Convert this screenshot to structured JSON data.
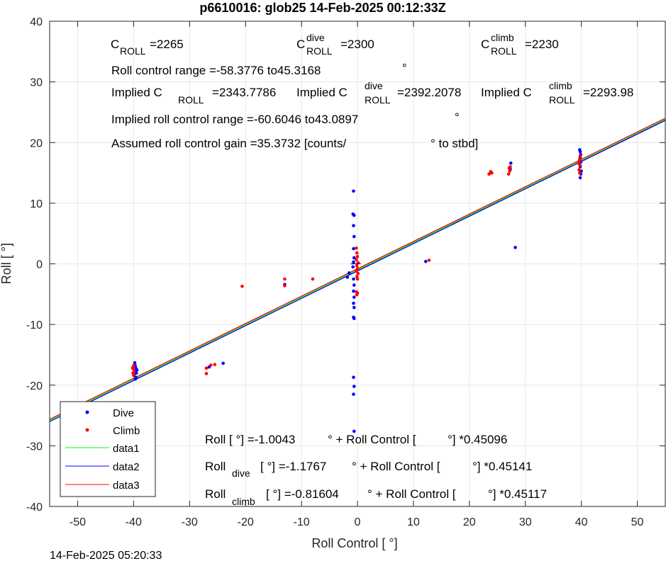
{
  "chart_data": {
    "type": "scatter",
    "title": "p6610016: glob25 14-Feb-2025 00:12:33Z",
    "xlabel": "Roll Control [   °]",
    "ylabel": "Roll [  °]",
    "xlim": [
      -55,
      55
    ],
    "ylim": [
      -40,
      40
    ],
    "xticks": [
      -50,
      -40,
      -30,
      -20,
      -10,
      0,
      10,
      20,
      30,
      40,
      50
    ],
    "yticks": [
      -40,
      -30,
      -20,
      -10,
      0,
      10,
      20,
      30,
      40
    ],
    "grid": true,
    "legend_position": "bottom-left",
    "series": [
      {
        "name": "Dive",
        "kind": "points",
        "color": "#0000ff",
        "points": [
          [
            -39.8,
            -16.3
          ],
          [
            -39.7,
            -16.8
          ],
          [
            -39.6,
            -17.2
          ],
          [
            -39.8,
            -17.6
          ],
          [
            -39.5,
            -18.0
          ],
          [
            -39.9,
            -18.3
          ],
          [
            -39.6,
            -18.7
          ],
          [
            -39.7,
            -19.0
          ],
          [
            -39.4,
            -17.5
          ],
          [
            -26.5,
            -17.0
          ],
          [
            -24.0,
            -16.4
          ],
          [
            -13.0,
            -3.4
          ],
          [
            -0.7,
            12.0
          ],
          [
            -0.8,
            8.2
          ],
          [
            -0.6,
            8.0
          ],
          [
            -0.7,
            6.3
          ],
          [
            -0.6,
            4.5
          ],
          [
            -0.7,
            2.5
          ],
          [
            -0.6,
            1.0
          ],
          [
            -0.7,
            0.3
          ],
          [
            -0.8,
            -0.5
          ],
          [
            -1.5,
            -1.5
          ],
          [
            -1.8,
            -2.2
          ],
          [
            -0.7,
            -2.5
          ],
          [
            -0.6,
            -3.5
          ],
          [
            -0.7,
            -4.5
          ],
          [
            -0.6,
            -5.5
          ],
          [
            -0.7,
            -6.5
          ],
          [
            -0.6,
            -7.2
          ],
          [
            -0.7,
            -8.8
          ],
          [
            -0.6,
            -9.0
          ],
          [
            -0.7,
            -18.7
          ],
          [
            -0.6,
            -20.2
          ],
          [
            -0.7,
            -21.5
          ],
          [
            -0.6,
            -27.6
          ],
          [
            12.2,
            0.4
          ],
          [
            27.3,
            15.6
          ],
          [
            27.4,
            16.6
          ],
          [
            28.2,
            2.7
          ],
          [
            39.8,
            14.2
          ],
          [
            39.9,
            14.8
          ],
          [
            40.0,
            15.3
          ],
          [
            39.8,
            16.0
          ],
          [
            39.9,
            16.8
          ],
          [
            39.8,
            17.5
          ],
          [
            39.9,
            18.0
          ],
          [
            39.8,
            18.5
          ],
          [
            39.7,
            18.8
          ]
        ]
      },
      {
        "name": "Climb",
        "kind": "points",
        "color": "#ff0000",
        "points": [
          [
            -40.0,
            -16.8
          ],
          [
            -40.2,
            -17.2
          ],
          [
            -39.9,
            -17.6
          ],
          [
            -40.1,
            -18.0
          ],
          [
            -40.0,
            -18.4
          ],
          [
            -27.0,
            -17.2
          ],
          [
            -27.0,
            -18.1
          ],
          [
            -26.2,
            -16.7
          ],
          [
            -25.5,
            -16.6
          ],
          [
            -20.6,
            -3.7
          ],
          [
            -13.0,
            -2.5
          ],
          [
            -13.0,
            -3.6
          ],
          [
            -8.0,
            -2.5
          ],
          [
            -0.2,
            2.6
          ],
          [
            -0.1,
            1.8
          ],
          [
            0.0,
            1.2
          ],
          [
            -0.2,
            0.7
          ],
          [
            0.1,
            0.2
          ],
          [
            -0.1,
            -0.3
          ],
          [
            0.0,
            -0.8
          ],
          [
            -0.2,
            -1.2
          ],
          [
            0.1,
            -1.6
          ],
          [
            -0.1,
            -2.1
          ],
          [
            0.0,
            -2.5
          ],
          [
            -0.2,
            -4.6
          ],
          [
            -0.1,
            -5.1
          ],
          [
            0.0,
            -4.8
          ],
          [
            12.8,
            0.6
          ],
          [
            23.5,
            14.8
          ],
          [
            23.8,
            15.2
          ],
          [
            24.0,
            15.0
          ],
          [
            27.0,
            14.8
          ],
          [
            27.2,
            15.3
          ],
          [
            27.1,
            15.8
          ],
          [
            27.3,
            16.0
          ],
          [
            39.6,
            15.5
          ],
          [
            39.7,
            15.0
          ],
          [
            39.8,
            16.2
          ],
          [
            39.6,
            16.8
          ],
          [
            39.7,
            17.2
          ],
          [
            39.8,
            17.8
          ],
          [
            39.6,
            16.5
          ]
        ]
      },
      {
        "name": "data1",
        "kind": "line",
        "color": "#00ff00",
        "intercept": -1.0043,
        "slope": 0.45096
      },
      {
        "name": "data2",
        "kind": "line",
        "color": "#0000ff",
        "intercept": -1.1767,
        "slope": 0.45141
      },
      {
        "name": "data3",
        "kind": "line",
        "color": "#ff0000",
        "intercept": -0.81604,
        "slope": 0.45117
      }
    ],
    "markers": [
      {
        "label": "°",
        "x": 8.4,
        "y": 32.1
      },
      {
        "label": "°",
        "x": 17.8,
        "y": 24.0
      }
    ],
    "annotations": {
      "c_roll": {
        "base": "C",
        "sub": "ROLL",
        "value": "=2265"
      },
      "c_roll_dive": {
        "base": "C",
        "sup": "dive",
        "sub": "ROLL",
        "value": "=2300"
      },
      "c_roll_climb": {
        "base": "C",
        "sup": "climb",
        "sub": "ROLL",
        "value": "=2230"
      },
      "roll_control_range": "Roll control range =-58.3776 to45.3168",
      "implied_c_roll": {
        "prefix": "Implied C",
        "sub": "ROLL",
        "value": "=2343.7786"
      },
      "implied_c_roll_dive": {
        "prefix": "Implied C",
        "sup": "dive",
        "sub": "ROLL",
        "value": "=2392.2078"
      },
      "implied_c_roll_climb": {
        "prefix": "Implied C",
        "sup": "climb",
        "sub": "ROLL",
        "value": "=2293.98"
      },
      "implied_range": "Implied roll control range =-60.6046 to43.0897",
      "gain_text": "Assumed roll control gain =35.3732 [counts/",
      "gain_unit": "° to stbd]",
      "fit_all": {
        "p1": "Roll [  °] =-1.0043",
        "p2": "° + Roll Control [",
        "p3": "°] *0.45096"
      },
      "fit_dive": {
        "p1": "Roll",
        "sub": "dive",
        "p2": "[  °] =-1.1767",
        "p3": "° + Roll Control [",
        "p4": "°] *0.45141"
      },
      "fit_climb": {
        "p1": "Roll",
        "sub": "climb",
        "p2": "[  °] =-0.81604",
        "p3": "° + Roll Control [",
        "p4": "°] *0.45117"
      }
    },
    "footer_timestamp": "14-Feb-2025 05:20:33"
  }
}
